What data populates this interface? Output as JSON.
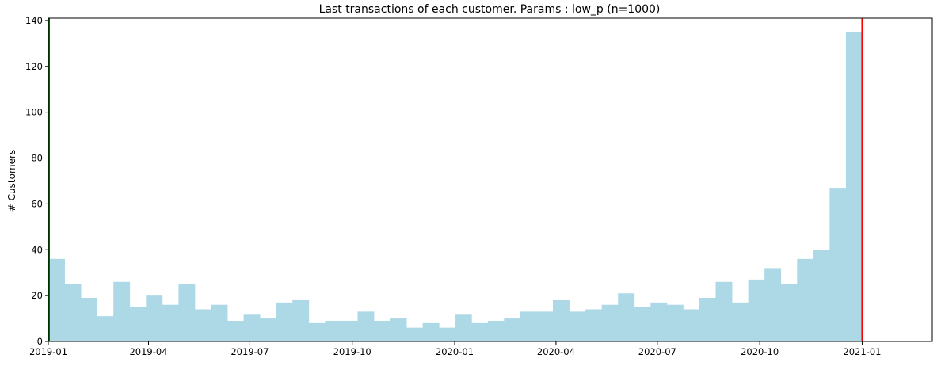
{
  "chart_data": {
    "type": "bar",
    "title": "Last transactions of each customer. Params : low_p (n=1000)",
    "xlabel": "",
    "ylabel": "# Customers",
    "x_axis": "date",
    "x_range": [
      "2019-01-01",
      "2021-03-05"
    ],
    "ylim": [
      0,
      141
    ],
    "grid": false,
    "bin_start": "2019-01-01",
    "bin_end": "2021-01-01",
    "bin_count": 50,
    "bar_color": "#add8e6",
    "values": [
      36,
      25,
      19,
      11,
      26,
      15,
      20,
      16,
      25,
      14,
      16,
      9,
      12,
      10,
      17,
      18,
      8,
      9,
      9,
      13,
      9,
      10,
      6,
      8,
      6,
      12,
      8,
      9,
      10,
      13,
      13,
      18,
      13,
      14,
      16,
      21,
      15,
      17,
      16,
      14,
      19,
      26,
      17,
      27,
      32,
      25,
      36,
      40,
      67,
      135
    ],
    "x_ticks": [
      {
        "date": "2019-01-01",
        "label": "2019-01"
      },
      {
        "date": "2019-04-01",
        "label": "2019-04"
      },
      {
        "date": "2019-07-01",
        "label": "2019-07"
      },
      {
        "date": "2019-10-01",
        "label": "2019-10"
      },
      {
        "date": "2020-01-01",
        "label": "2020-01"
      },
      {
        "date": "2020-04-01",
        "label": "2020-04"
      },
      {
        "date": "2020-07-01",
        "label": "2020-07"
      },
      {
        "date": "2020-10-01",
        "label": "2020-10"
      },
      {
        "date": "2021-01-01",
        "label": "2021-01"
      }
    ],
    "y_ticks": [
      0,
      20,
      40,
      60,
      80,
      100,
      120,
      140
    ],
    "reference_lines": [
      {
        "date": "2019-01-01",
        "color": "#006400"
      },
      {
        "date": "2021-01-01",
        "color": "#ff0000"
      }
    ]
  }
}
